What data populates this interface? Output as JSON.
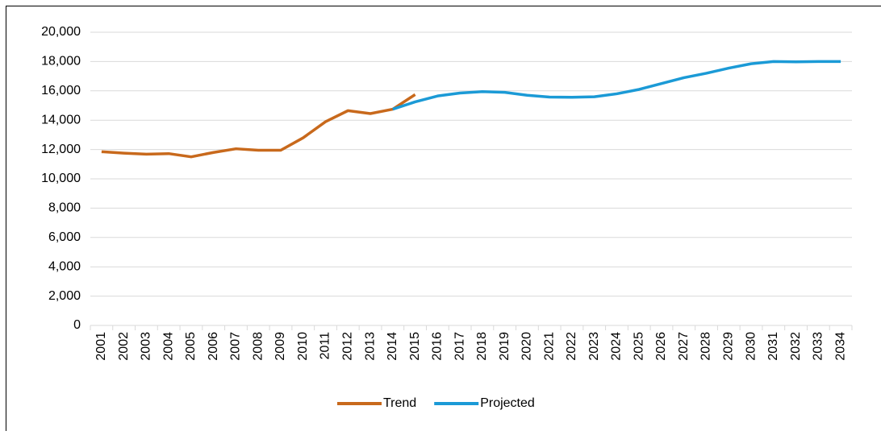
{
  "chart_data": {
    "type": "line",
    "categories": [
      "2001",
      "2002",
      "2003",
      "2004",
      "2005",
      "2006",
      "2007",
      "2008",
      "2009",
      "2010",
      "2011",
      "2012",
      "2013",
      "2014",
      "2015",
      "2016",
      "2017",
      "2018",
      "2019",
      "2020",
      "2021",
      "2022",
      "2023",
      "2024",
      "2025",
      "2026",
      "2027",
      "2028",
      "2029",
      "2030",
      "2031",
      "2032",
      "2033",
      "2034"
    ],
    "series": [
      {
        "name": "Trend",
        "color": "#c8691c",
        "values": [
          11850,
          11750,
          11680,
          11720,
          11500,
          11800,
          12050,
          11950,
          11950,
          12800,
          13900,
          14650,
          14450,
          14750,
          15750,
          null,
          null,
          null,
          null,
          null,
          null,
          null,
          null,
          null,
          null,
          null,
          null,
          null,
          null,
          null,
          null,
          null,
          null,
          null
        ]
      },
      {
        "name": "Projected",
        "color": "#1b9ad6",
        "values": [
          null,
          null,
          null,
          null,
          null,
          null,
          null,
          null,
          null,
          null,
          null,
          null,
          null,
          14750,
          15250,
          15650,
          15850,
          15950,
          15900,
          15700,
          15580,
          15560,
          15600,
          15800,
          16100,
          16500,
          16900,
          17200,
          17550,
          17850,
          18000,
          17980,
          18000,
          18000
        ]
      }
    ],
    "ylim": [
      0,
      20000
    ],
    "yticks": [
      0,
      {
        "value": 2000,
        "label": "2,000"
      },
      {
        "value": 4000,
        "label": "4,000"
      },
      {
        "value": 6000,
        "label": "6,000"
      },
      {
        "value": 8000,
        "label": "8,000"
      },
      {
        "value": 10000,
        "label": "10,000"
      },
      {
        "value": 12000,
        "label": "12,000"
      },
      {
        "value": 14000,
        "label": "14,000"
      },
      {
        "value": 16000,
        "label": "16,000"
      },
      {
        "value": 18000,
        "label": "18,000"
      },
      {
        "value": 20000,
        "label": "20,000"
      }
    ],
    "grid": true,
    "legend": "bottom"
  }
}
